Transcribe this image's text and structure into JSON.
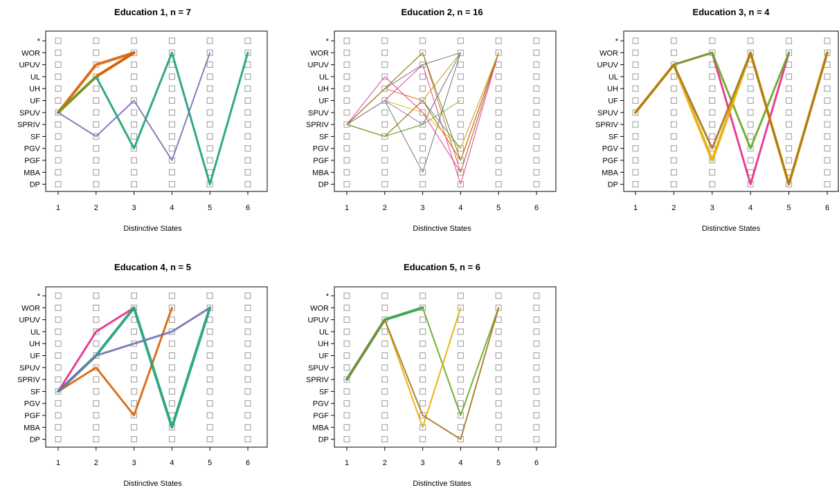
{
  "chart_data": [
    {
      "type": "line",
      "title": "Education 1, n = 7",
      "xlabel": "Distinctive States",
      "x_ticks": [
        1,
        2,
        3,
        4,
        5,
        6
      ],
      "y_categories": [
        "DP",
        "MBA",
        "PGF",
        "PGV",
        "SF",
        "SPRIV",
        "SPUV",
        "UF",
        "UH",
        "UL",
        "UPUV",
        "WOR",
        "*"
      ],
      "grid_markers": true,
      "series": [
        {
          "color": "#d95f02",
          "weight": 4,
          "states": [
            "SPUV",
            "UPUV",
            "WOR"
          ]
        },
        {
          "color": "#d95f02",
          "weight": 4,
          "states": [
            "SPUV",
            "UL",
            "WOR"
          ]
        },
        {
          "color": "#d95f02",
          "weight": 3,
          "states": [
            "SPUV",
            "UL",
            "WOR"
          ]
        },
        {
          "color": "#1b9e77",
          "weight": 3,
          "states": [
            "SPUV",
            "UL",
            "PGV",
            "WOR",
            "DP",
            "WOR"
          ]
        },
        {
          "color": "#66a61e",
          "weight": 3,
          "states": [
            "SPUV",
            "UL"
          ]
        },
        {
          "color": "#7570b3",
          "weight": 2,
          "states": [
            "SPUV",
            "SF",
            "UF",
            "PGF",
            "WOR"
          ]
        }
      ]
    },
    {
      "type": "line",
      "title": "Education 2, n = 16",
      "xlabel": "Distinctive States",
      "x_ticks": [
        1,
        2,
        3,
        4,
        5,
        6
      ],
      "y_categories": [
        "DP",
        "MBA",
        "PGF",
        "PGV",
        "SF",
        "SPRIV",
        "SPUV",
        "UF",
        "UH",
        "UL",
        "UPUV",
        "WOR",
        "*"
      ],
      "grid_markers": true,
      "series": [
        {
          "color": "#1b9e77",
          "weight": 1,
          "states": [
            "SPRIV",
            "UH",
            "WOR",
            "PGF",
            "WOR"
          ]
        },
        {
          "color": "#d95f02",
          "weight": 1,
          "states": [
            "SPRIV",
            "UH",
            "UF",
            "PGF",
            "WOR"
          ]
        },
        {
          "color": "#7570b3",
          "weight": 1,
          "states": [
            "SPRIV",
            "SF",
            "UF",
            "WOR"
          ]
        },
        {
          "color": "#e7298a",
          "weight": 1,
          "states": [
            "SPRIV",
            "UL",
            "SPUV",
            "MBA",
            "WOR"
          ]
        },
        {
          "color": "#e7298a",
          "weight": 1,
          "states": [
            "SPRIV",
            "UF",
            "UPUV",
            "DP",
            "WOR"
          ]
        },
        {
          "color": "#66a61e",
          "weight": 1,
          "states": [
            "SPRIV",
            "SF",
            "SPRIV",
            "UF"
          ]
        },
        {
          "color": "#e6ab02",
          "weight": 1,
          "states": [
            "SPRIV",
            "SF",
            "UF",
            "WOR"
          ]
        },
        {
          "color": "#a6761d",
          "weight": 1,
          "states": [
            "SPRIV",
            "UH",
            "WOR",
            "PGF",
            "WOR"
          ]
        },
        {
          "color": "#666666",
          "weight": 1,
          "states": [
            "SPRIV",
            "UF",
            "MBA",
            "WOR"
          ]
        },
        {
          "color": "#666666",
          "weight": 1,
          "states": [
            "SPRIV",
            "UH",
            "UPUV",
            "WOR"
          ]
        },
        {
          "color": "#1b9e77",
          "weight": 1,
          "states": [
            "SPRIV",
            "SF",
            "UF",
            "PGV",
            "WOR"
          ]
        },
        {
          "color": "#d95f02",
          "weight": 1,
          "states": [
            "SPRIV",
            "SF",
            "UF",
            "PGF",
            "WOR"
          ]
        },
        {
          "color": "#66a61e",
          "weight": 1,
          "states": [
            "SPRIV",
            "SF",
            "SPRIV",
            "WOR"
          ]
        },
        {
          "color": "#e6ab02",
          "weight": 1,
          "states": [
            "SPRIV",
            "UF",
            "SPUV",
            "PGV",
            "WOR"
          ]
        },
        {
          "color": "#a6761d",
          "weight": 1,
          "states": [
            "SPRIV",
            "UH",
            "WOR",
            "MBA",
            "WOR"
          ]
        },
        {
          "color": "#7570b3",
          "weight": 1,
          "states": [
            "SPRIV",
            "UF",
            "SPRIV",
            "WOR"
          ]
        }
      ]
    },
    {
      "type": "line",
      "title": "Education 3, n = 4",
      "xlabel": "Distinctive States",
      "x_ticks": [
        1,
        2,
        3,
        4,
        5,
        6
      ],
      "y_categories": [
        "DP",
        "MBA",
        "PGF",
        "PGV",
        "SF",
        "SPRIV",
        "SPUV",
        "UF",
        "UH",
        "UL",
        "UPUV",
        "WOR",
        "*"
      ],
      "grid_markers": true,
      "series": [
        {
          "color": "#e7298a",
          "weight": 3,
          "states": [
            "SPUV",
            "UPUV",
            "WOR",
            "DP",
            "WOR"
          ]
        },
        {
          "color": "#66a61e",
          "weight": 3,
          "states": [
            "SPUV",
            "UPUV",
            "WOR",
            "PGV",
            "WOR"
          ]
        },
        {
          "color": "#e6ab02",
          "weight": 4,
          "states": [
            "SPUV",
            "UPUV",
            "PGF",
            "WOR",
            "DP",
            "WOR"
          ]
        },
        {
          "color": "#a6761d",
          "weight": 3,
          "states": [
            "SPUV",
            "UPUV",
            "PGV",
            "WOR",
            "DP",
            "WOR"
          ]
        }
      ]
    },
    {
      "type": "line",
      "title": "Education 4, n = 5",
      "xlabel": "Distinctive States",
      "x_ticks": [
        1,
        2,
        3,
        4,
        5,
        6
      ],
      "y_categories": [
        "DP",
        "MBA",
        "PGF",
        "PGV",
        "SF",
        "SPRIV",
        "SPUV",
        "UF",
        "UH",
        "UL",
        "UPUV",
        "WOR",
        "*"
      ],
      "grid_markers": true,
      "series": [
        {
          "color": "#e7298a",
          "weight": 3,
          "states": [
            "SF",
            "UL",
            "WOR"
          ]
        },
        {
          "color": "#d95f02",
          "weight": 3,
          "states": [
            "SF",
            "SPUV",
            "PGF",
            "WOR"
          ]
        },
        {
          "color": "#1b9e77",
          "weight": 4,
          "states": [
            "SF",
            "UF",
            "WOR",
            "MBA",
            "WOR"
          ]
        },
        {
          "color": "#7570b3",
          "weight": 3,
          "states": [
            "SF",
            "UF",
            "UH",
            "UL",
            "WOR"
          ]
        }
      ]
    },
    {
      "type": "line",
      "title": "Education 5, n = 6",
      "xlabel": "Distinctive States",
      "x_ticks": [
        1,
        2,
        3,
        4,
        5,
        6
      ],
      "y_categories": [
        "DP",
        "MBA",
        "PGF",
        "PGV",
        "SF",
        "SPRIV",
        "SPUV",
        "UF",
        "UH",
        "UL",
        "UPUV",
        "WOR",
        "*"
      ],
      "grid_markers": true,
      "series": [
        {
          "color": "#1b9e77",
          "weight": 4,
          "states": [
            "SPRIV",
            "UPUV",
            "WOR"
          ]
        },
        {
          "color": "#1b9e77",
          "weight": 3,
          "states": [
            "SPRIV",
            "UPUV",
            "WOR"
          ]
        },
        {
          "color": "#66a61e",
          "weight": 2,
          "states": [
            "SPRIV",
            "UPUV",
            "WOR",
            "PGF",
            "WOR"
          ]
        },
        {
          "color": "#e6ab02",
          "weight": 2,
          "states": [
            "SPRIV",
            "UPUV",
            "MBA",
            "WOR"
          ]
        },
        {
          "color": "#a6761d",
          "weight": 2,
          "states": [
            "SPRIV",
            "UPUV",
            "PGF",
            "DP",
            "WOR"
          ]
        }
      ]
    }
  ]
}
